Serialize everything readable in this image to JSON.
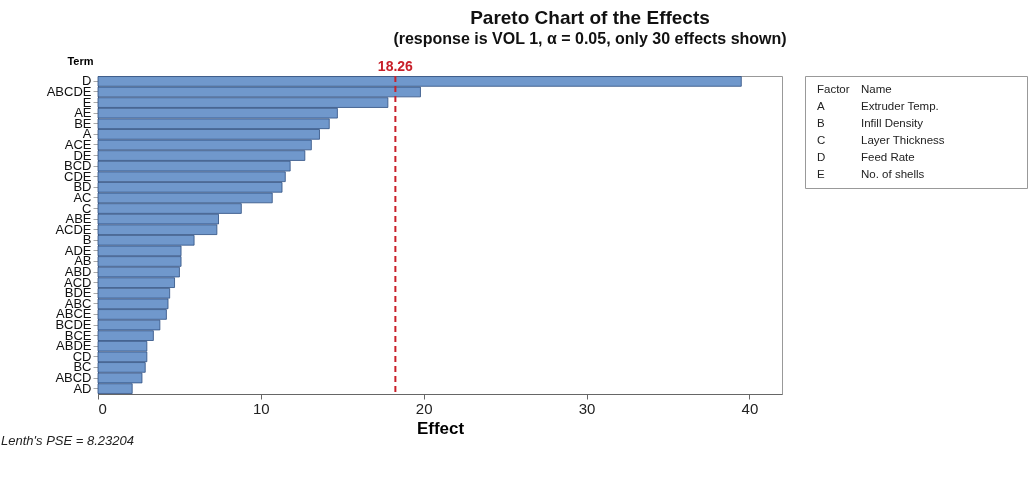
{
  "chart_data": {
    "type": "bar",
    "orientation": "horizontal",
    "title": "Pareto Chart of the Effects",
    "subtitle": "(response is VOL 1, α = 0.05, only 30 effects shown)",
    "xlabel": "Effect",
    "ylabel": "Term",
    "categories": [
      "D",
      "ABCDE",
      "E",
      "AE",
      "BE",
      "A",
      "ACE",
      "DE",
      "BCD",
      "CDE",
      "BD",
      "AC",
      "C",
      "ABE",
      "ACDE",
      "B",
      "ADE",
      "AB",
      "ABD",
      "ACD",
      "BDE",
      "ABC",
      "ABCE",
      "BCDE",
      "BCE",
      "ABDE",
      "CD",
      "BC",
      "ABCD",
      "AD"
    ],
    "values": [
      39.5,
      19.8,
      17.8,
      14.7,
      14.2,
      13.6,
      13.1,
      12.7,
      11.8,
      11.5,
      11.3,
      10.7,
      8.8,
      7.4,
      7.3,
      5.9,
      5.1,
      5.1,
      5.0,
      4.7,
      4.4,
      4.3,
      4.2,
      3.8,
      3.4,
      3.0,
      3.0,
      2.9,
      2.7,
      2.1
    ],
    "color": "#7098cc",
    "xlim": [
      0,
      42
    ],
    "xticks": [
      0,
      10,
      20,
      30,
      40
    ],
    "ref_lines": [
      {
        "axis": "x",
        "value": 18.26,
        "label": "18.26",
        "color": "#c8202a",
        "line_style": "dashed"
      }
    ],
    "annotations": [
      "Lenth's PSE = 8.23204",
      "Factor",
      "Name",
      "A",
      "Extruder Temp.",
      "B",
      "Infill Density",
      "C",
      "Layer Thickness",
      "D",
      "Feed Rate",
      "E",
      "No. of shells"
    ],
    "grid": false
  }
}
